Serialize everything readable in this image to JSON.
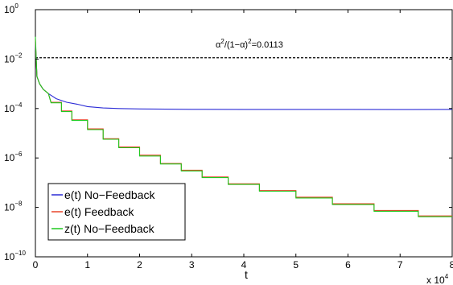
{
  "chart_data": {
    "type": "line",
    "yscale": "log",
    "xlim": [
      0,
      80000
    ],
    "ylim": [
      1e-10,
      1
    ],
    "xlabel": "t",
    "x_tick_labels": [
      "0",
      "1",
      "2",
      "3",
      "4",
      "5",
      "6",
      "7",
      "8"
    ],
    "x_multiplier_label": "x 10",
    "x_multiplier_exp": "4",
    "y_ticks": [
      {
        "value": 1e-10,
        "base": "10",
        "exp": "−10"
      },
      {
        "value": 1e-08,
        "base": "10",
        "exp": "−8"
      },
      {
        "value": 1e-06,
        "base": "10",
        "exp": "−6"
      },
      {
        "value": 0.0001,
        "base": "10",
        "exp": "−4"
      },
      {
        "value": 0.01,
        "base": "10",
        "exp": "−2"
      },
      {
        "value": 1,
        "base": "10",
        "exp": "0"
      }
    ],
    "reference_line": {
      "y": 0.0113,
      "style": "dashed",
      "color": "#000000",
      "label_parts": [
        "α",
        "2",
        "/(1−α)",
        "2",
        "=0.0113"
      ]
    },
    "legend_position": "bottom-left",
    "series": [
      {
        "name": "e(t) No−Feedback",
        "color": "#2b2bd6",
        "points": [
          [
            0,
            0.05
          ],
          [
            300,
            0.002
          ],
          [
            800,
            0.001
          ],
          [
            1500,
            0.0006
          ],
          [
            2500,
            0.0004
          ],
          [
            4000,
            0.00025
          ],
          [
            6000,
            0.00018
          ],
          [
            8000,
            0.00015
          ],
          [
            10000,
            0.00012
          ],
          [
            13000,
            0.000105
          ],
          [
            16000,
            0.0001
          ],
          [
            20000,
            9.6e-05
          ],
          [
            30000,
            9.3e-05
          ],
          [
            40000,
            9.2e-05
          ],
          [
            50000,
            9.2e-05
          ],
          [
            60000,
            9.2e-05
          ],
          [
            70000,
            9.1e-05
          ],
          [
            80000,
            9.2e-05
          ]
        ]
      },
      {
        "name": "e(t) Feedback",
        "color": "#e8442a",
        "points": [
          [
            0,
            0.06
          ],
          [
            300,
            0.002
          ],
          [
            800,
            0.001
          ],
          [
            1500,
            0.0006
          ],
          [
            2500,
            0.0004
          ],
          [
            3000,
            0.00018
          ],
          [
            5000,
            0.00018
          ],
          [
            5000,
            8e-05
          ],
          [
            7000,
            8e-05
          ],
          [
            7000,
            3.5e-05
          ],
          [
            10000,
            3.5e-05
          ],
          [
            10000,
            1.5e-05
          ],
          [
            13000,
            1.5e-05
          ],
          [
            13000,
            6e-06
          ],
          [
            16000,
            6e-06
          ],
          [
            16000,
            2.8e-06
          ],
          [
            20000,
            2.8e-06
          ],
          [
            20000,
            1.3e-06
          ],
          [
            24000,
            1.3e-06
          ],
          [
            24000,
            6e-07
          ],
          [
            28000,
            6e-07
          ],
          [
            28000,
            3.2e-07
          ],
          [
            32000,
            3.2e-07
          ],
          [
            32000,
            1.7e-07
          ],
          [
            37000,
            1.7e-07
          ],
          [
            37000,
            9e-08
          ],
          [
            43000,
            9e-08
          ],
          [
            43000,
            4.8e-08
          ],
          [
            50000,
            4.8e-08
          ],
          [
            50000,
            2.6e-08
          ],
          [
            57000,
            2.6e-08
          ],
          [
            57000,
            1.4e-08
          ],
          [
            65000,
            1.4e-08
          ],
          [
            65000,
            7.5e-09
          ],
          [
            73500,
            7.5e-09
          ],
          [
            73500,
            4.5e-09
          ],
          [
            80000,
            4.5e-09
          ]
        ]
      },
      {
        "name": "z(t) No−Feedback",
        "color": "#1fc81f",
        "points": [
          [
            0,
            0.08
          ],
          [
            300,
            0.002
          ],
          [
            800,
            0.001
          ],
          [
            1500,
            0.0006
          ],
          [
            2500,
            0.0004
          ],
          [
            3000,
            0.00017
          ],
          [
            5000,
            0.00017
          ],
          [
            5000,
            7.5e-05
          ],
          [
            7000,
            7.5e-05
          ],
          [
            7000,
            3.3e-05
          ],
          [
            10000,
            3.3e-05
          ],
          [
            10000,
            1.4e-05
          ],
          [
            13000,
            1.4e-05
          ],
          [
            13000,
            5.7e-06
          ],
          [
            16000,
            5.7e-06
          ],
          [
            16000,
            2.6e-06
          ],
          [
            20000,
            2.6e-06
          ],
          [
            20000,
            1.2e-06
          ],
          [
            24000,
            1.2e-06
          ],
          [
            24000,
            5.7e-07
          ],
          [
            28000,
            5.7e-07
          ],
          [
            28000,
            3e-07
          ],
          [
            32000,
            3e-07
          ],
          [
            32000,
            1.6e-07
          ],
          [
            37000,
            1.6e-07
          ],
          [
            37000,
            8.5e-08
          ],
          [
            43000,
            8.5e-08
          ],
          [
            43000,
            4.5e-08
          ],
          [
            50000,
            4.5e-08
          ],
          [
            50000,
            2.4e-08
          ],
          [
            57000,
            2.4e-08
          ],
          [
            57000,
            1.3e-08
          ],
          [
            65000,
            1.3e-08
          ],
          [
            65000,
            7e-09
          ],
          [
            73500,
            7e-09
          ],
          [
            73500,
            4.2e-09
          ],
          [
            80000,
            4.2e-09
          ]
        ]
      }
    ]
  }
}
